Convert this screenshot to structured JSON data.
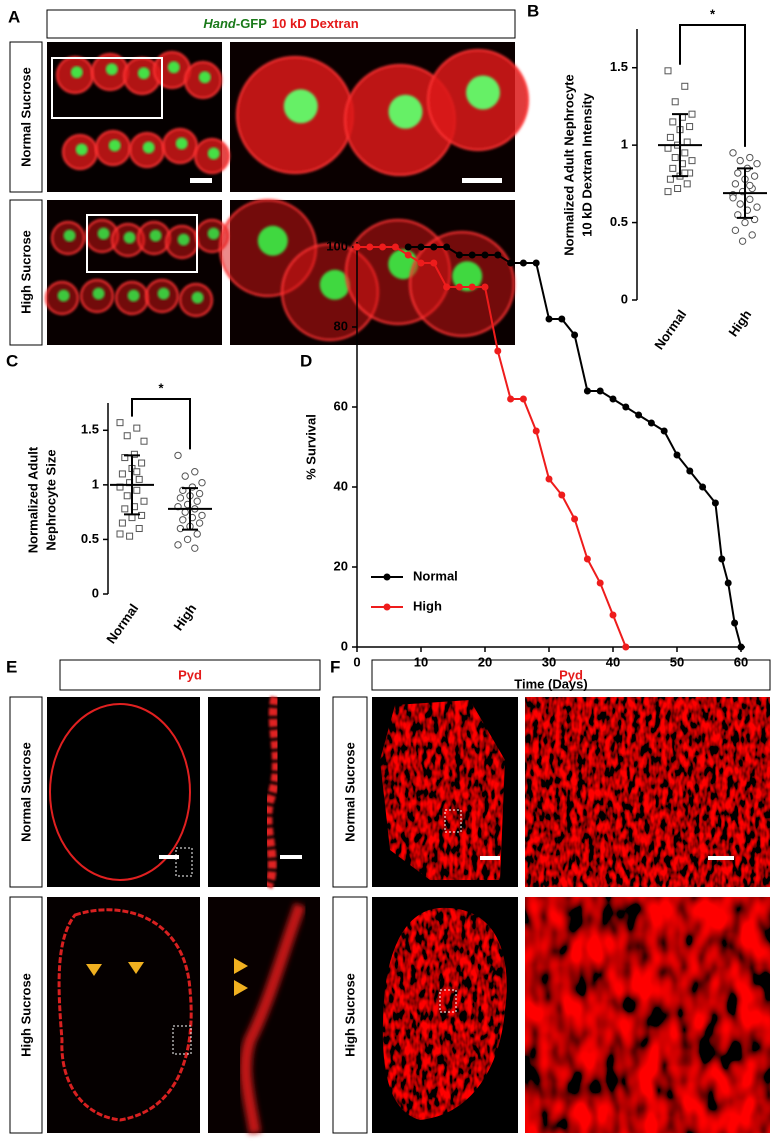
{
  "panel_labels": [
    "A",
    "B",
    "C",
    "D",
    "E",
    "F"
  ],
  "panel_a": {
    "header": [
      "Hand",
      "-GFP",
      "10 kD Dextran"
    ],
    "rows": [
      "Normal Sucrose",
      "High Sucrose"
    ]
  },
  "panel_e": {
    "header": "Pyd",
    "rows": [
      "Normal Sucrose",
      "High Sucrose"
    ]
  },
  "panel_f": {
    "header": "Pyd",
    "rows": [
      "Normal Sucrose",
      "High Sucrose"
    ]
  },
  "chart_data": [
    {
      "type": "dotplot",
      "ylabel": [
        "Normalized Adult Nephrocyte",
        "10 kD Dextran Intensity"
      ],
      "categories": [
        "Normal",
        "High"
      ],
      "color": "#000000",
      "significance": "*",
      "groups": [
        {
          "marker": "square",
          "mean": 1,
          "sd": 0.2,
          "values": [
            1.48,
            1.38,
            1.28,
            1.2,
            1.18,
            1.15,
            1.12,
            1.1,
            1.05,
            1.02,
            1.0,
            0.98,
            0.95,
            0.92,
            0.9,
            0.88,
            0.85,
            0.82,
            0.8,
            0.78,
            0.75,
            0.72,
            0.7,
            0.82
          ]
        },
        {
          "marker": "circle",
          "mean": 0.69,
          "sd": 0.16,
          "values": [
            0.95,
            0.92,
            0.9,
            0.88,
            0.85,
            0.82,
            0.8,
            0.78,
            0.75,
            0.72,
            0.7,
            0.68,
            0.65,
            0.62,
            0.6,
            0.58,
            0.55,
            0.52,
            0.5,
            0.45,
            0.42,
            0.38,
            0.66,
            0.74
          ]
        }
      ],
      "ylim": [
        0,
        1.75
      ],
      "yticks": [
        0,
        0.5,
        1,
        1.5
      ]
    },
    {
      "type": "dotplot",
      "ylabel": [
        "Normalized Adult",
        "Nephrocyte Size"
      ],
      "categories": [
        "Normal",
        "High"
      ],
      "color": "#000000",
      "significance": "*",
      "groups": [
        {
          "marker": "square",
          "mean": 1,
          "sd": 0.27,
          "values": [
            1.57,
            1.52,
            1.45,
            1.4,
            1.28,
            1.25,
            1.2,
            1.15,
            1.1,
            1.05,
            1.02,
            0.98,
            0.95,
            0.9,
            0.85,
            0.8,
            0.78,
            0.72,
            0.7,
            0.65,
            0.6,
            0.53,
            0.55,
            1.12
          ]
        },
        {
          "marker": "circle",
          "mean": 0.78,
          "sd": 0.19,
          "values": [
            1.27,
            1.12,
            1.08,
            1.02,
            0.98,
            0.95,
            0.92,
            0.9,
            0.88,
            0.85,
            0.82,
            0.8,
            0.78,
            0.75,
            0.72,
            0.7,
            0.68,
            0.65,
            0.62,
            0.6,
            0.55,
            0.5,
            0.45,
            0.42
          ]
        }
      ],
      "ylim": [
        0,
        1.75
      ],
      "yticks": [
        0,
        0.5,
        1,
        1.5
      ]
    },
    {
      "type": "line",
      "xlabel": "Time (Days)",
      "ylabel": "% Survival",
      "legend": "lower left",
      "series": [
        {
          "name": "Normal",
          "color": "#000000",
          "x": [
            8,
            10,
            12,
            14,
            16,
            18,
            20,
            22,
            24,
            26,
            28,
            30,
            32,
            34,
            36,
            38,
            40,
            42,
            44,
            46,
            48,
            50,
            52,
            54,
            56,
            57,
            58,
            59,
            60
          ],
          "values": [
            100,
            100,
            100,
            100,
            98,
            98,
            98,
            98,
            96,
            96,
            96,
            82,
            82,
            78,
            64,
            64,
            62,
            60,
            58,
            56,
            54,
            48,
            44,
            40,
            36,
            22,
            16,
            6,
            0
          ]
        },
        {
          "name": "High",
          "color": "#ee1c1c",
          "x": [
            0,
            2,
            4,
            6,
            8,
            10,
            12,
            14,
            16,
            18,
            20,
            22,
            24,
            26,
            28,
            30,
            32,
            34,
            36,
            38,
            40,
            42
          ],
          "values": [
            100,
            100,
            100,
            100,
            98,
            96,
            96,
            90,
            90,
            90,
            90,
            74,
            62,
            62,
            54,
            42,
            38,
            32,
            22,
            16,
            8,
            0
          ]
        }
      ],
      "xlim": [
        0,
        60
      ],
      "ylim": [
        0,
        100
      ],
      "xticks": [
        0,
        10,
        20,
        30,
        40,
        50,
        60
      ],
      "yticks": [
        0,
        20,
        40,
        60,
        80,
        100
      ]
    }
  ]
}
